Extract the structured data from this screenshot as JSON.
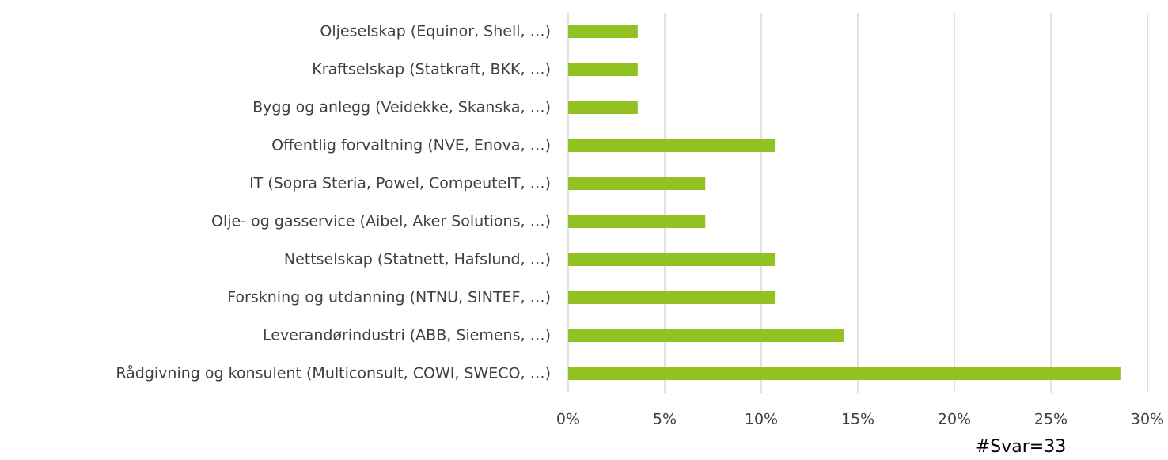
{
  "chart_data": {
    "type": "bar",
    "orientation": "horizontal",
    "categories": [
      "Oljeselskap (Equinor, Shell, …)",
      "Kraftselskap (Statkraft, BKK, …)",
      "Bygg og anlegg (Veidekke, Skanska, …)",
      "Offentlig forvaltning (NVE, Enova, …)",
      "IT (Sopra Steria, Powel, CompeuteIT, …)",
      "Olje- og gasservice (Aibel, Aker Solutions, …)",
      "Nettselskap (Statnett, Hafslund, …)",
      "Forskning og utdanning (NTNU, SINTEF, …)",
      "Leverandørindustri (ABB, Siemens, …)",
      "Rådgivning og konsulent (Multiconsult, COWI, SWECO, …)"
    ],
    "values": [
      3.6,
      3.6,
      3.6,
      10.7,
      7.1,
      7.1,
      10.7,
      10.7,
      14.3,
      28.6
    ],
    "color": "#92c122",
    "xlim": [
      0,
      30
    ],
    "xticks": [
      {
        "value": 0,
        "label": "0%"
      },
      {
        "value": 5,
        "label": "5%"
      },
      {
        "value": 10,
        "label": "10%"
      },
      {
        "value": 15,
        "label": "15%"
      },
      {
        "value": 20,
        "label": "20%"
      },
      {
        "value": 25,
        "label": "25%"
      },
      {
        "value": 30,
        "label": "30%"
      }
    ],
    "grid": true,
    "annotation": "#Svar=33"
  }
}
